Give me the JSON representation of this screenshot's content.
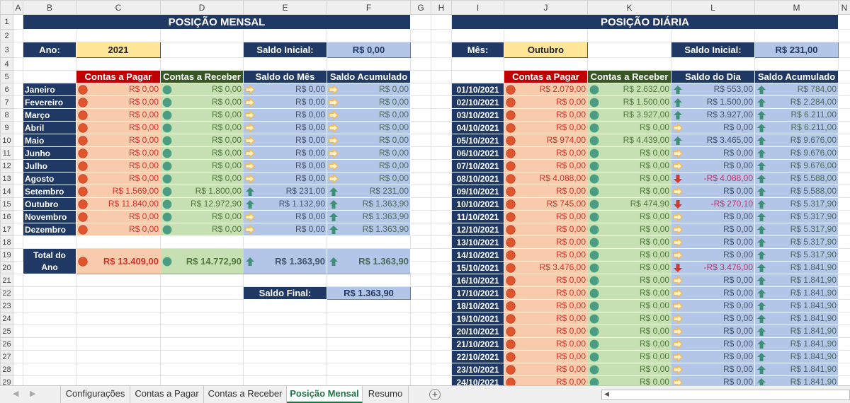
{
  "columns": [
    "A",
    "B",
    "C",
    "D",
    "E",
    "F",
    "G",
    "H",
    "I",
    "J",
    "K",
    "L",
    "M",
    "N"
  ],
  "colors": {
    "navy": "#1f3864",
    "red_header": "#c00000",
    "green_header": "#375623",
    "pagar_icon": "#e0562c",
    "receber_icon": "#4e9b85",
    "arrow_up": "#3f8f78",
    "arrow_right": "#f4b942",
    "arrow_down": "#d23b2a"
  },
  "mensal": {
    "title": "POSIÇÃO MENSAL",
    "ano_label": "Ano:",
    "ano": "2021",
    "saldo_inicial_label": "Saldo Inicial:",
    "saldo_inicial": "R$ 0,00",
    "headers": [
      "Contas a Pagar",
      "Contas a Receber",
      "Saldo do Mês",
      "Saldo Acumulado"
    ],
    "rows": [
      {
        "mes": "Janeiro",
        "pagar": "R$ 0,00",
        "receber": "R$ 0,00",
        "saldo": "R$ 0,00",
        "saldo_icon": "right",
        "acum": "R$ 0,00",
        "acum_icon": "right"
      },
      {
        "mes": "Fevereiro",
        "pagar": "R$ 0,00",
        "receber": "R$ 0,00",
        "saldo": "R$ 0,00",
        "saldo_icon": "right",
        "acum": "R$ 0,00",
        "acum_icon": "right"
      },
      {
        "mes": "Março",
        "pagar": "R$ 0,00",
        "receber": "R$ 0,00",
        "saldo": "R$ 0,00",
        "saldo_icon": "right",
        "acum": "R$ 0,00",
        "acum_icon": "right"
      },
      {
        "mes": "Abril",
        "pagar": "R$ 0,00",
        "receber": "R$ 0,00",
        "saldo": "R$ 0,00",
        "saldo_icon": "right",
        "acum": "R$ 0,00",
        "acum_icon": "right"
      },
      {
        "mes": "Maio",
        "pagar": "R$ 0,00",
        "receber": "R$ 0,00",
        "saldo": "R$ 0,00",
        "saldo_icon": "right",
        "acum": "R$ 0,00",
        "acum_icon": "right"
      },
      {
        "mes": "Junho",
        "pagar": "R$ 0,00",
        "receber": "R$ 0,00",
        "saldo": "R$ 0,00",
        "saldo_icon": "right",
        "acum": "R$ 0,00",
        "acum_icon": "right"
      },
      {
        "mes": "Julho",
        "pagar": "R$ 0,00",
        "receber": "R$ 0,00",
        "saldo": "R$ 0,00",
        "saldo_icon": "right",
        "acum": "R$ 0,00",
        "acum_icon": "right"
      },
      {
        "mes": "Agosto",
        "pagar": "R$ 0,00",
        "receber": "R$ 0,00",
        "saldo": "R$ 0,00",
        "saldo_icon": "right",
        "acum": "R$ 0,00",
        "acum_icon": "right"
      },
      {
        "mes": "Setembro",
        "pagar": "R$ 1.569,00",
        "receber": "R$ 1.800,00",
        "saldo": "R$ 231,00",
        "saldo_icon": "up",
        "acum": "R$ 231,00",
        "acum_icon": "up"
      },
      {
        "mes": "Outubro",
        "pagar": "R$ 11.840,00",
        "receber": "R$ 12.972,90",
        "saldo": "R$ 1.132,90",
        "saldo_icon": "up",
        "acum": "R$ 1.363,90",
        "acum_icon": "up"
      },
      {
        "mes": "Novembro",
        "pagar": "R$ 0,00",
        "receber": "R$ 0,00",
        "saldo": "R$ 0,00",
        "saldo_icon": "right",
        "acum": "R$ 1.363,90",
        "acum_icon": "up"
      },
      {
        "mes": "Dezembro",
        "pagar": "R$ 0,00",
        "receber": "R$ 0,00",
        "saldo": "R$ 0,00",
        "saldo_icon": "right",
        "acum": "R$ 1.363,90",
        "acum_icon": "up"
      }
    ],
    "total": {
      "label": "Total do Ano",
      "pagar": "R$ 13.409,00",
      "receber": "R$ 14.772,90",
      "saldo": "R$ 1.363,90",
      "saldo_icon": "up",
      "acum": "R$ 1.363,90",
      "acum_icon": "up"
    },
    "saldo_final_label": "Saldo Final:",
    "saldo_final": "R$ 1.363,90"
  },
  "diaria": {
    "title": "POSIÇÃO DIÁRIA",
    "mes_label": "Mês:",
    "mes": "Outubro",
    "saldo_inicial_label": "Saldo Inicial:",
    "saldo_inicial": "R$ 231,00",
    "headers": [
      "Contas a Pagar",
      "Contas a Receber",
      "Saldo do Dia",
      "Saldo Acumulado"
    ],
    "rows": [
      {
        "data": "01/10/2021",
        "pagar": "R$ 2.079,00",
        "receber": "R$ 2.632,00",
        "saldo": "R$ 553,00",
        "saldo_icon": "up",
        "acum": "R$ 784,00"
      },
      {
        "data": "02/10/2021",
        "pagar": "R$ 0,00",
        "receber": "R$ 1.500,00",
        "saldo": "R$ 1.500,00",
        "saldo_icon": "up",
        "acum": "R$ 2.284,00"
      },
      {
        "data": "03/10/2021",
        "pagar": "R$ 0,00",
        "receber": "R$ 3.927,00",
        "saldo": "R$ 3.927,00",
        "saldo_icon": "up",
        "acum": "R$ 6.211,00"
      },
      {
        "data": "04/10/2021",
        "pagar": "R$ 0,00",
        "receber": "R$ 0,00",
        "saldo": "R$ 0,00",
        "saldo_icon": "right",
        "acum": "R$ 6.211,00"
      },
      {
        "data": "05/10/2021",
        "pagar": "R$ 974,00",
        "receber": "R$ 4.439,00",
        "saldo": "R$ 3.465,00",
        "saldo_icon": "up",
        "acum": "R$ 9.676,00"
      },
      {
        "data": "06/10/2021",
        "pagar": "R$ 0,00",
        "receber": "R$ 0,00",
        "saldo": "R$ 0,00",
        "saldo_icon": "right",
        "acum": "R$ 9.676,00"
      },
      {
        "data": "07/10/2021",
        "pagar": "R$ 0,00",
        "receber": "R$ 0,00",
        "saldo": "R$ 0,00",
        "saldo_icon": "right",
        "acum": "R$ 9.676,00"
      },
      {
        "data": "08/10/2021",
        "pagar": "R$ 4.088,00",
        "receber": "R$ 0,00",
        "saldo": "-R$ 4.088,00",
        "saldo_icon": "down",
        "acum": "R$ 5.588,00"
      },
      {
        "data": "09/10/2021",
        "pagar": "R$ 0,00",
        "receber": "R$ 0,00",
        "saldo": "R$ 0,00",
        "saldo_icon": "right",
        "acum": "R$ 5.588,00"
      },
      {
        "data": "10/10/2021",
        "pagar": "R$ 745,00",
        "receber": "R$ 474,90",
        "saldo": "-R$ 270,10",
        "saldo_icon": "down",
        "acum": "R$ 5.317,90"
      },
      {
        "data": "11/10/2021",
        "pagar": "R$ 0,00",
        "receber": "R$ 0,00",
        "saldo": "R$ 0,00",
        "saldo_icon": "right",
        "acum": "R$ 5.317,90"
      },
      {
        "data": "12/10/2021",
        "pagar": "R$ 0,00",
        "receber": "R$ 0,00",
        "saldo": "R$ 0,00",
        "saldo_icon": "right",
        "acum": "R$ 5.317,90"
      },
      {
        "data": "13/10/2021",
        "pagar": "R$ 0,00",
        "receber": "R$ 0,00",
        "saldo": "R$ 0,00",
        "saldo_icon": "right",
        "acum": "R$ 5.317,90"
      },
      {
        "data": "14/10/2021",
        "pagar": "R$ 0,00",
        "receber": "R$ 0,00",
        "saldo": "R$ 0,00",
        "saldo_icon": "right",
        "acum": "R$ 5.317,90"
      },
      {
        "data": "15/10/2021",
        "pagar": "R$ 3.476,00",
        "receber": "R$ 0,00",
        "saldo": "-R$ 3.476,00",
        "saldo_icon": "down",
        "acum": "R$ 1.841,90"
      },
      {
        "data": "16/10/2021",
        "pagar": "R$ 0,00",
        "receber": "R$ 0,00",
        "saldo": "R$ 0,00",
        "saldo_icon": "right",
        "acum": "R$ 1.841,90"
      },
      {
        "data": "17/10/2021",
        "pagar": "R$ 0,00",
        "receber": "R$ 0,00",
        "saldo": "R$ 0,00",
        "saldo_icon": "right",
        "acum": "R$ 1.841,90"
      },
      {
        "data": "18/10/2021",
        "pagar": "R$ 0,00",
        "receber": "R$ 0,00",
        "saldo": "R$ 0,00",
        "saldo_icon": "right",
        "acum": "R$ 1.841,90"
      },
      {
        "data": "19/10/2021",
        "pagar": "R$ 0,00",
        "receber": "R$ 0,00",
        "saldo": "R$ 0,00",
        "saldo_icon": "right",
        "acum": "R$ 1.841,90"
      },
      {
        "data": "20/10/2021",
        "pagar": "R$ 0,00",
        "receber": "R$ 0,00",
        "saldo": "R$ 0,00",
        "saldo_icon": "right",
        "acum": "R$ 1.841,90"
      },
      {
        "data": "21/10/2021",
        "pagar": "R$ 0,00",
        "receber": "R$ 0,00",
        "saldo": "R$ 0,00",
        "saldo_icon": "right",
        "acum": "R$ 1.841,90"
      },
      {
        "data": "22/10/2021",
        "pagar": "R$ 0,00",
        "receber": "R$ 0,00",
        "saldo": "R$ 0,00",
        "saldo_icon": "right",
        "acum": "R$ 1.841,90"
      },
      {
        "data": "23/10/2021",
        "pagar": "R$ 0,00",
        "receber": "R$ 0,00",
        "saldo": "R$ 0,00",
        "saldo_icon": "right",
        "acum": "R$ 1.841,90"
      },
      {
        "data": "24/10/2021",
        "pagar": "R$ 0,00",
        "receber": "R$ 0,00",
        "saldo": "R$ 0,00",
        "saldo_icon": "right",
        "acum": "R$ 1.841,90"
      }
    ]
  },
  "tabs": [
    "Configurações",
    "Contas a Pagar",
    "Contas a Receber",
    "Posição Mensal",
    "Resumo"
  ],
  "active_tab": "Posição Mensal",
  "add_sheet_label": "+"
}
